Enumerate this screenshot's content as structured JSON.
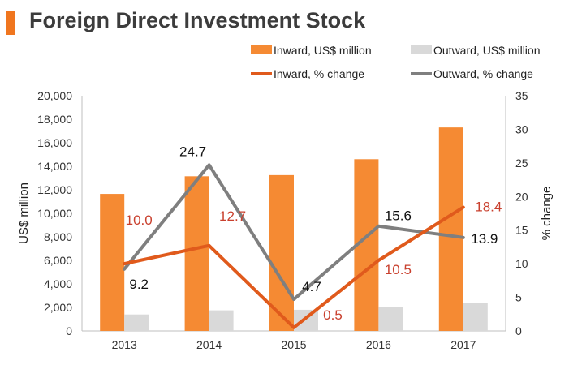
{
  "title": "Foreign Direct Investment Stock",
  "colors": {
    "inward_bar": "#f58a33",
    "outward_bar": "#d9d9d9",
    "inward_line": "#e05a1c",
    "outward_line": "#7f7f7f",
    "inward_label": "#c9402e",
    "outward_label": "#111111",
    "title_accent": "#f0761f"
  },
  "chart_data": {
    "type": "bar+line",
    "title": "Foreign Direct Investment Stock",
    "categories": [
      "2013",
      "2014",
      "2015",
      "2016",
      "2017"
    ],
    "ylabel": "US$ million",
    "y2label": "% change",
    "ylim": [
      0,
      20000
    ],
    "y2lim": [
      0,
      35
    ],
    "yticks": [
      "0",
      "2,000",
      "4,000",
      "6,000",
      "8,000",
      "10,000",
      "12,000",
      "14,000",
      "16,000",
      "18,000",
      "20,000"
    ],
    "y2ticks": [
      "0",
      "5",
      "10",
      "15",
      "20",
      "25",
      "30",
      "35"
    ],
    "series": [
      {
        "name": "Inward, US$ million",
        "type": "bar",
        "axis": "left",
        "values": [
          11650,
          13150,
          13250,
          14600,
          17300
        ]
      },
      {
        "name": "Outward, US$ million",
        "type": "bar",
        "axis": "left",
        "values": [
          1400,
          1750,
          1800,
          2050,
          2350
        ]
      },
      {
        "name": "Inward, % change",
        "type": "line",
        "axis": "right",
        "values": [
          10.0,
          12.7,
          0.5,
          10.5,
          18.4
        ],
        "labels": [
          "10.0",
          "12.7",
          "0.5",
          "10.5",
          "18.4"
        ]
      },
      {
        "name": "Outward, % change",
        "type": "line",
        "axis": "right",
        "values": [
          9.2,
          24.7,
          4.7,
          15.6,
          13.9
        ],
        "labels": [
          "9.2",
          "24.7",
          "4.7",
          "15.6",
          "13.9"
        ]
      }
    ],
    "legend": [
      {
        "name": "Inward, US$ million",
        "kind": "bar",
        "color": "#f58a33"
      },
      {
        "name": "Outward, US$ million",
        "kind": "bar",
        "color": "#d9d9d9"
      },
      {
        "name": "Inward, % change",
        "kind": "line",
        "color": "#e05a1c"
      },
      {
        "name": "Outward, % change",
        "kind": "line",
        "color": "#7f7f7f"
      }
    ],
    "legend_position": "top"
  }
}
